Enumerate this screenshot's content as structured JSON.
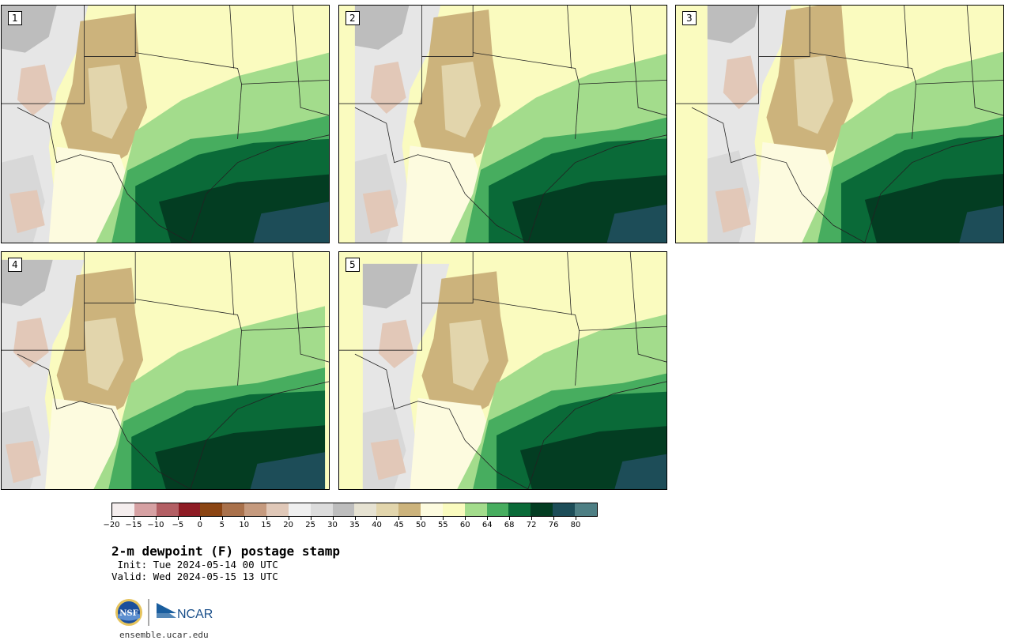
{
  "panels": [
    {
      "label": "1"
    },
    {
      "label": "2"
    },
    {
      "label": "3"
    },
    {
      "label": "4"
    },
    {
      "label": "5"
    }
  ],
  "colorbar": {
    "colors": [
      "#f5eeee",
      "#d6a1a3",
      "#b35f64",
      "#8e1c25",
      "#8b4513",
      "#a9714b",
      "#c59a7e",
      "#e0c8b8",
      "#f0f0f0",
      "#dcdcdc",
      "#bdbdbd",
      "#e6e2d2",
      "#e2d5ac",
      "#ccb37c",
      "#fdfbdf",
      "#fafbbf",
      "#a3dc8c",
      "#47ad5f",
      "#0a6a38",
      "#033d22",
      "#1d4d58",
      "#4e7f84"
    ],
    "ticks": [
      "−20",
      "−15",
      "−10",
      "−5",
      "0",
      "5",
      "10",
      "15",
      "20",
      "25",
      "30",
      "35",
      "40",
      "45",
      "50",
      "55",
      "60",
      "64",
      "68",
      "72",
      "76",
      "80"
    ]
  },
  "title": "2-m dewpoint (F) postage stamp",
  "init": " Init: Tue 2024-05-14 00 UTC",
  "valid": "Valid: Wed 2024-05-15 13 UTC",
  "logos": {
    "nsf": "NSF",
    "ncar": "NCAR"
  },
  "url": "ensemble.ucar.edu"
}
